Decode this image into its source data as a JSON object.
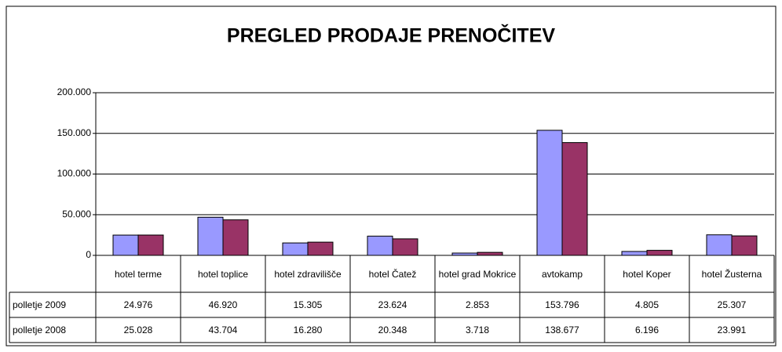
{
  "chart_data": {
    "type": "bar",
    "title": "PREGLED PRODAJE PRENOČITEV",
    "categories": [
      "hotel terme",
      "hotel toplice",
      "hotel zdravilišče",
      "hotel Čatež",
      "hotel grad Mokrice",
      "avtokamp",
      "hotel Koper",
      "hotel Žusterna"
    ],
    "series": [
      {
        "name": "polletje 2009",
        "color": "#9999ff",
        "values": [
          24976,
          46920,
          15305,
          23624,
          2853,
          153796,
          4805,
          25307
        ],
        "value_labels": [
          "24.976",
          "46.920",
          "15.305",
          "23.624",
          "2.853",
          "153.796",
          "4.805",
          "25.307"
        ]
      },
      {
        "name": "polletje 2008",
        "color": "#993366",
        "values": [
          25028,
          43704,
          16280,
          20348,
          3718,
          138677,
          6196,
          23991
        ],
        "value_labels": [
          "25.028",
          "43.704",
          "16.280",
          "20.348",
          "3.718",
          "138.677",
          "6.196",
          "23.991"
        ]
      }
    ],
    "ylim": [
      0,
      200000
    ],
    "yticks": [
      0,
      {
        "value": 50000,
        "label": "50.000"
      },
      {
        "value": 100000,
        "label": "100.000"
      },
      {
        "value": 150000,
        "label": "150.000"
      },
      {
        "value": 200000,
        "label": "200.000"
      }
    ],
    "grid": true
  }
}
